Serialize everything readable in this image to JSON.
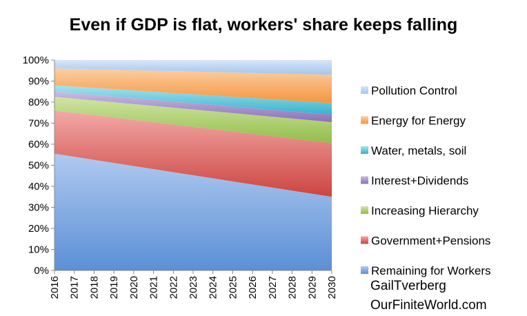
{
  "chart_data": {
    "type": "area",
    "stacked": true,
    "title": "Even if GDP is flat, workers' share keeps falling",
    "xlabel": "",
    "ylabel": "",
    "x": [
      "2016",
      "2017",
      "2018",
      "2019",
      "2020",
      "2021",
      "2022",
      "2023",
      "2024",
      "2025",
      "2026",
      "2027",
      "2028",
      "2029",
      "2030"
    ],
    "ylim": [
      0,
      100
    ],
    "yticks": [
      "0%",
      "10%",
      "20%",
      "30%",
      "40%",
      "50%",
      "60%",
      "70%",
      "80%",
      "90%",
      "100%"
    ],
    "series": [
      {
        "name": "Remaining for Workers",
        "start": 55.5,
        "end": 35,
        "color": "#5b8fd6",
        "light": "#b0caf0"
      },
      {
        "name": "Government+Pensions",
        "start": 20.5,
        "end": 25.5,
        "color": "#cc4440",
        "light": "#f2a9a7"
      },
      {
        "name": "Increasing Hierarchy",
        "start": 6.5,
        "end": 10,
        "color": "#93bd4a",
        "light": "#cfe5a3"
      },
      {
        "name": "Interest+Dividends",
        "start": 2.5,
        "end": 3.5,
        "color": "#8a70b8",
        "light": "#cbbde4"
      },
      {
        "name": "Water, metals, soil",
        "start": 3,
        "end": 5.5,
        "color": "#34b3cc",
        "light": "#a8e2ee"
      },
      {
        "name": "Energy  for Energy",
        "start": 8,
        "end": 13.5,
        "color": "#f5953f",
        "light": "#fbcfa3"
      },
      {
        "name": "Pollution Control",
        "start": 4,
        "end": 7,
        "color": "#a5c5ec",
        "light": "#d6e6f8"
      }
    ],
    "legend": "right"
  },
  "credits": {
    "author": "GailTverberg",
    "site": "OurFiniteWorld.com"
  }
}
